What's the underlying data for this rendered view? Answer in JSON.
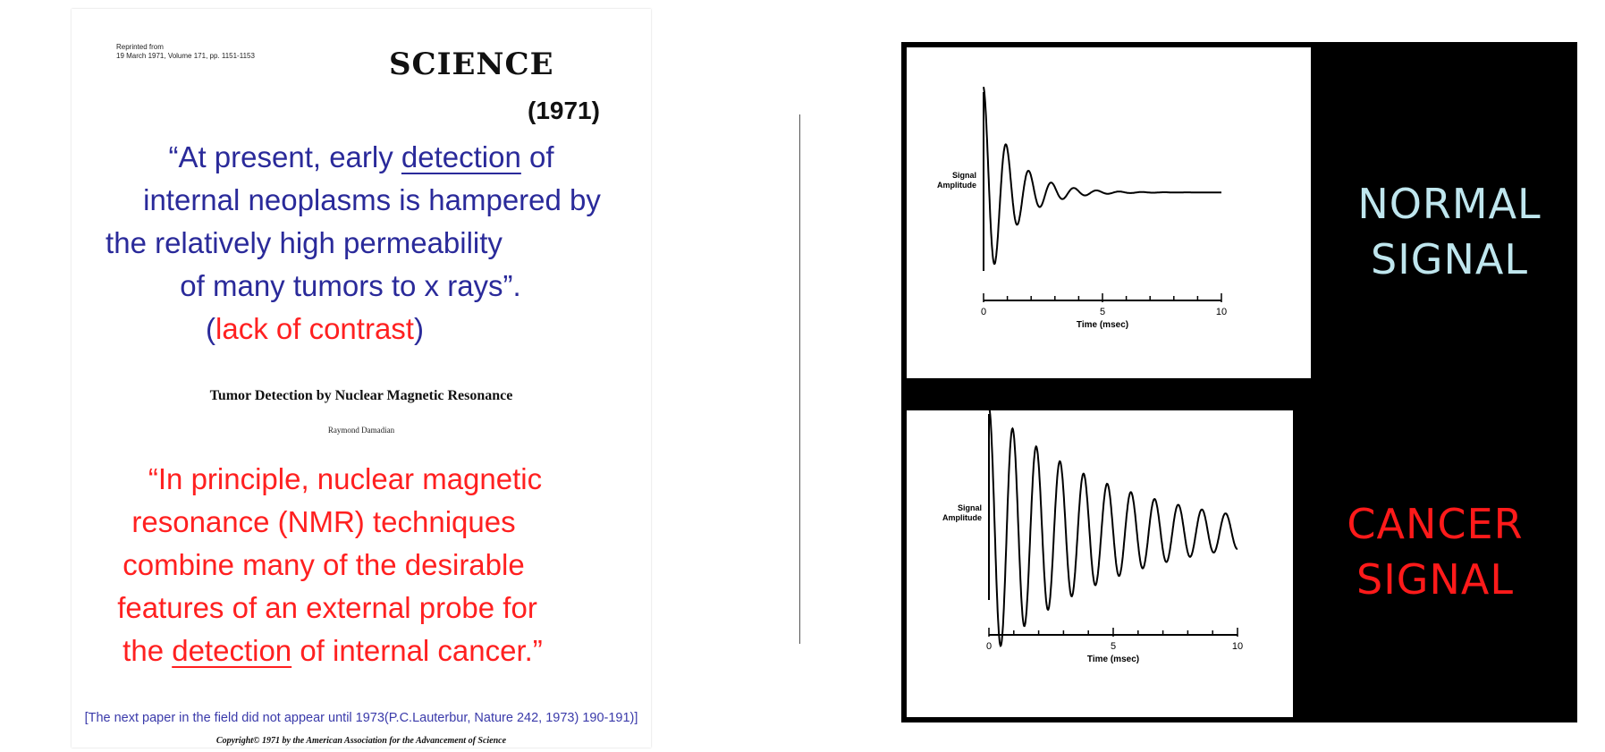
{
  "article": {
    "reprint_line1": "Reprinted from",
    "reprint_line2": "19 March 1971, Volume 171, pp. 1151-1153",
    "journal": "SCIENCE",
    "year": "(1971)",
    "quote1": {
      "l1_a": "“At present, early ",
      "l1_u": "detection",
      "l1_b": " of",
      "l2": "internal neoplasms is hampered by",
      "l3": "the relatively high permeability",
      "l4": "of many tumors to x rays”.",
      "l5_open": "(",
      "l5_red": "lack of contrast",
      "l5_close": ")"
    },
    "paper_title": "Tumor Detection by Nuclear Magnetic Resonance",
    "author": "Raymond Damadian",
    "quote2": {
      "l1": "“In principle, nuclear magnetic",
      "l2": "resonance (NMR) techniques",
      "l3": "combine many of the desirable",
      "l4": "features of an external probe for",
      "l5_a": "the ",
      "l5_u": "detection",
      "l5_b": " of internal cancer.”"
    },
    "footnote": "[The next  paper in the field did not appear until 1973(P.C.Lauterbur, Nature 242, 1973) 190-191)]",
    "copyright": "Copyright© 1971 by the American Association for the Advancement of Science"
  },
  "figure": {
    "normal": {
      "label_line1": "NORMAL",
      "label_line2": "SIGNAL",
      "label_color": "#bfe6ee"
    },
    "cancer": {
      "label_line1": "CANCER",
      "label_line2": "SIGNAL",
      "label_color": "#ff1a1a"
    },
    "colors": {
      "quote_blue": "#2a2a9a",
      "quote_red": "#ff2020",
      "figure_bg": "#000000"
    }
  },
  "chart_data": [
    {
      "type": "line",
      "title": "",
      "ylabel": "Signal Amplitude",
      "xlabel": "Time (msec)",
      "xlim": [
        0,
        10
      ],
      "x_ticks": [
        0,
        5,
        10
      ],
      "grid": false,
      "series": [
        {
          "decay_constant_msec": 1.2,
          "frequency_cycles_per_msec": 1.05,
          "initial_amplitude": 1.0,
          "baseline": 0.1,
          "duration_msec": 10
        }
      ]
    },
    {
      "type": "line",
      "title": "",
      "ylabel": "Signal Amplitude",
      "xlabel": "Time (msec)",
      "xlim": [
        0,
        10
      ],
      "x_ticks": [
        0,
        5,
        10
      ],
      "grid": false,
      "series": [
        {
          "decay_constant_msec": 5.0,
          "frequency_cycles_per_msec": 1.05,
          "initial_amplitude": 1.0,
          "baseline": 0.1,
          "duration_msec": 10
        }
      ]
    }
  ]
}
